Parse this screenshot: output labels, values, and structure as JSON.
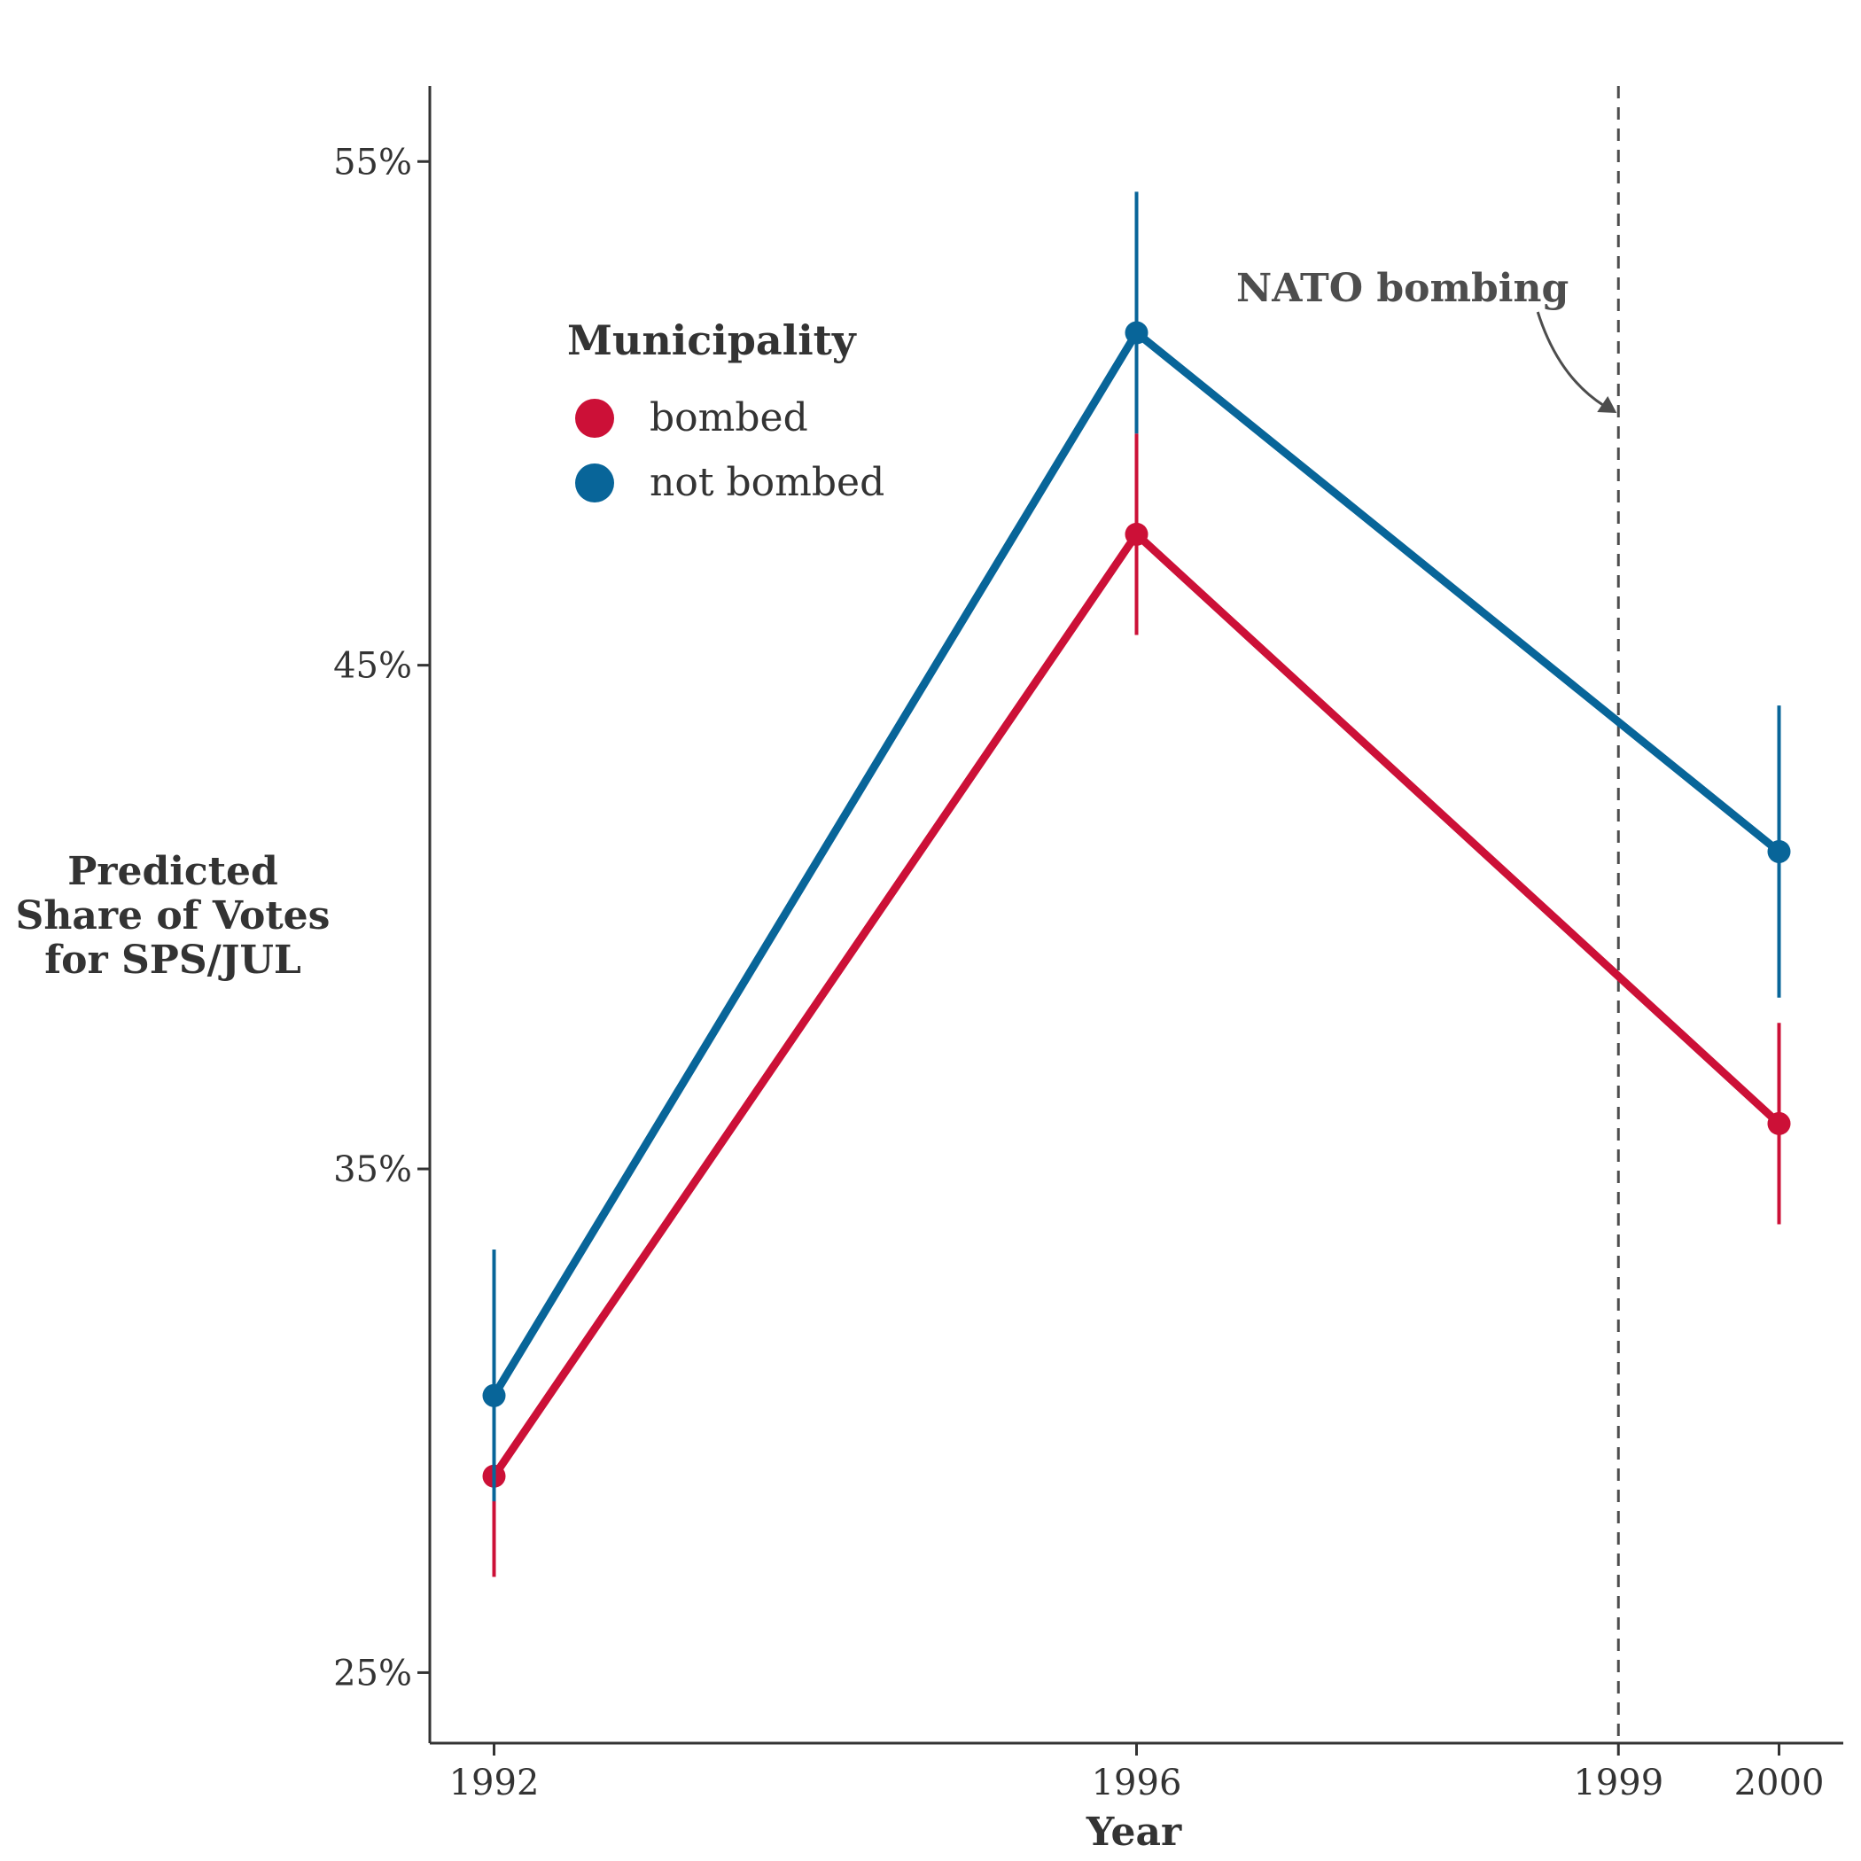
{
  "chart_data": {
    "type": "line",
    "xlabel": "Year",
    "ylabel": [
      "Predicted",
      "Share of Votes",
      "for SPS/JUL"
    ],
    "x_ticks": [
      1992,
      1996,
      1999,
      2000
    ],
    "x_tick_labels": [
      "1992",
      "1996",
      "1999",
      "2000"
    ],
    "xlim": [
      1991.6,
      2000.4
    ],
    "ylim": [
      23.6,
      56.5
    ],
    "y_ticks": [
      25,
      35,
      45,
      55
    ],
    "y_tick_labels": [
      "25%",
      "35%",
      "45%",
      "55%"
    ],
    "grid": false,
    "legend": {
      "title": "Municipality",
      "placement": "top-left"
    },
    "series": [
      {
        "name": "bombed",
        "color": "#cc1037",
        "x": [
          1992,
          1996,
          2000
        ],
        "y": [
          28.9,
          47.6,
          35.9
        ],
        "ci_low": [
          26.9,
          45.6,
          33.9
        ],
        "ci_high": [
          30.9,
          49.6,
          37.9
        ]
      },
      {
        "name": "not bombed",
        "color": "#086599",
        "x": [
          1992,
          1996,
          2000
        ],
        "y": [
          30.5,
          51.6,
          41.3
        ],
        "ci_low": [
          28.4,
          49.6,
          38.4
        ],
        "ci_high": [
          33.4,
          54.4,
          44.2
        ]
      }
    ],
    "annotations": [
      {
        "type": "vline",
        "x": 1999,
        "style": "dashed",
        "label": "NATO bombing"
      }
    ]
  }
}
